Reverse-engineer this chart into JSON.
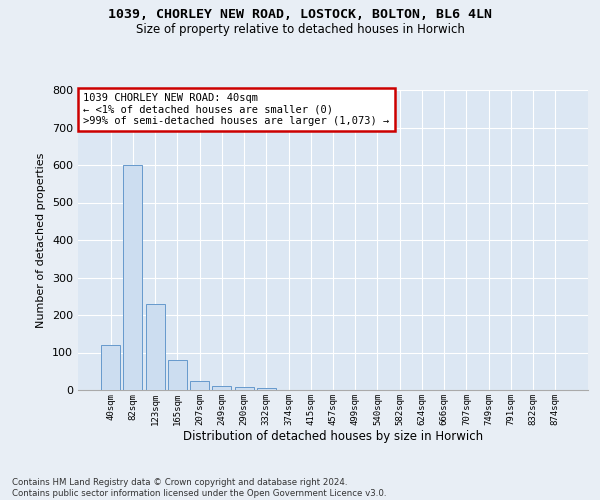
{
  "title_line1": "1039, CHORLEY NEW ROAD, LOSTOCK, BOLTON, BL6 4LN",
  "title_line2": "Size of property relative to detached houses in Horwich",
  "xlabel": "Distribution of detached houses by size in Horwich",
  "ylabel": "Number of detached properties",
  "categories": [
    "40sqm",
    "82sqm",
    "123sqm",
    "165sqm",
    "207sqm",
    "249sqm",
    "290sqm",
    "332sqm",
    "374sqm",
    "415sqm",
    "457sqm",
    "499sqm",
    "540sqm",
    "582sqm",
    "624sqm",
    "666sqm",
    "707sqm",
    "749sqm",
    "791sqm",
    "832sqm",
    "874sqm"
  ],
  "values": [
    120,
    600,
    230,
    80,
    25,
    12,
    8,
    5,
    0,
    0,
    0,
    0,
    0,
    0,
    0,
    0,
    0,
    0,
    0,
    0,
    0
  ],
  "bar_color": "#ccddf0",
  "bar_edge_color": "#6699cc",
  "highlight_box_color": "#cc0000",
  "annotation_line1": "1039 CHORLEY NEW ROAD: 40sqm",
  "annotation_line2": "← <1% of detached houses are smaller (0)",
  "annotation_line3": ">99% of semi-detached houses are larger (1,073) →",
  "ylim": [
    0,
    800
  ],
  "yticks": [
    0,
    100,
    200,
    300,
    400,
    500,
    600,
    700,
    800
  ],
  "footer_line1": "Contains HM Land Registry data © Crown copyright and database right 2024.",
  "footer_line2": "Contains public sector information licensed under the Open Government Licence v3.0.",
  "bg_color": "#e8eef5",
  "plot_bg_color": "#dce7f3"
}
